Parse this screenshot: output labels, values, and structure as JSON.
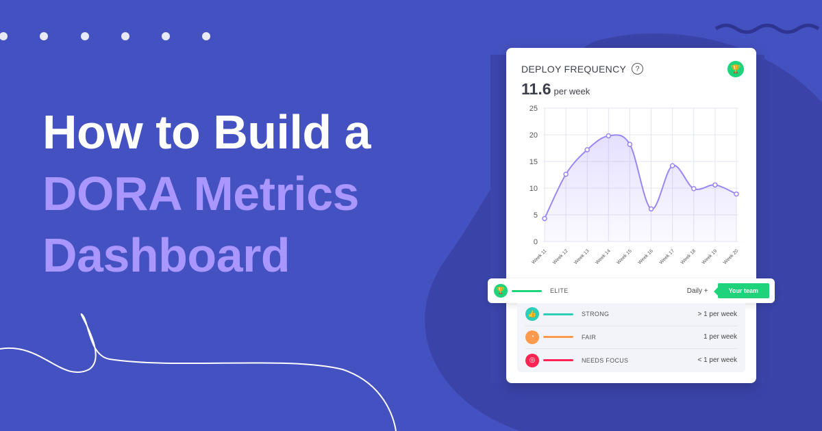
{
  "headline": {
    "line1": "How to Build a",
    "line2": "DORA Metrics",
    "line3": "Dashboard"
  },
  "card": {
    "title": "DEPLOY FREQUENCY",
    "help_icon": "question-circle-icon",
    "badge_icon": "trophy-icon",
    "value": "11.6",
    "unit": "per week"
  },
  "tiers": [
    {
      "label": "ELITE",
      "value": "Daily +",
      "color": "#1ed37a",
      "icon": "trophy-icon",
      "tag": "Your team"
    },
    {
      "label": "STRONG",
      "value": "> 1 per week",
      "color": "#2ecdb5",
      "icon": "thumbs-up-icon"
    },
    {
      "label": "FAIR",
      "value": "1 per week",
      "color": "#ff9a4d",
      "icon": "gauge-icon"
    },
    {
      "label": "NEEDS FOCUS",
      "value": "< 1 per week",
      "color": "#ff2452",
      "icon": "target-icon"
    }
  ],
  "colors": {
    "background": "#4451c1",
    "accent": "#a996ff",
    "line": "#9b85f5"
  },
  "chart_data": {
    "type": "area",
    "categories": [
      "Week 11",
      "Week 12",
      "Week 13",
      "Week 14",
      "Week 15",
      "Week 16",
      "Week 17",
      "Week 18",
      "Week 19",
      "Week 20"
    ],
    "values": [
      4.3,
      12.6,
      17.2,
      19.8,
      18.2,
      6.1,
      14.2,
      9.9,
      10.6,
      8.9
    ],
    "ylim": [
      0,
      25
    ],
    "yticks": [
      "0",
      "5",
      "10",
      "15",
      "20",
      "25"
    ],
    "grid": true
  }
}
